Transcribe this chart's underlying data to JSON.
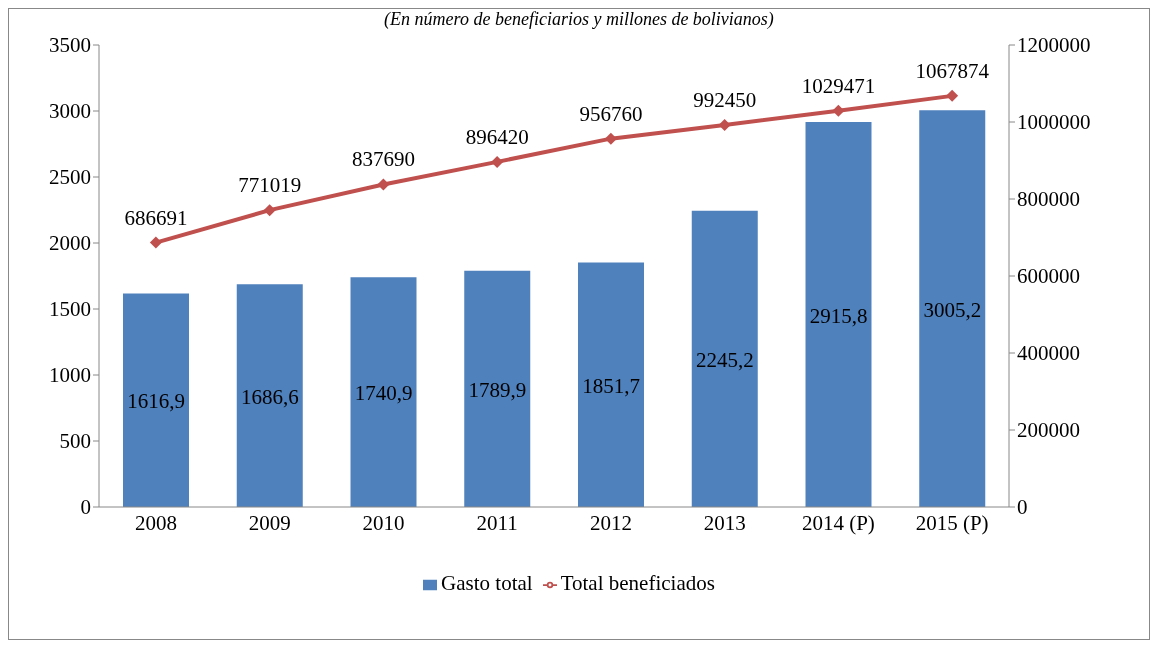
{
  "chart_data": {
    "type": "bar",
    "subtitle": "(En número de beneficiarios y millones de bolivianos)",
    "categories": [
      "2008",
      "2009",
      "2010",
      "2011",
      "2012",
      "2013",
      "2014 (P)",
      "2015 (P)"
    ],
    "series": [
      {
        "name": "Gasto total",
        "color": "#4f81bd",
        "values": [
          1616.9,
          1686.6,
          1740.9,
          1789.9,
          1851.7,
          2245.2,
          2915.8,
          3005.2
        ],
        "value_labels": [
          "1616,9",
          "1686,6",
          "1740,9",
          "1789,9",
          "1851,7",
          "2245,2",
          "2915,8",
          "3005,2"
        ]
      },
      {
        "name": "Total beneficiados",
        "type": "line",
        "axis": "y2",
        "color": "#c0504d",
        "marker": "diamond",
        "values": [
          686691,
          771019,
          837690,
          896420,
          956760,
          992450,
          1029471,
          1067874
        ],
        "value_labels": [
          "686691",
          "771019",
          "837690",
          "896420",
          "956760",
          "992450",
          "1029471",
          "1067874"
        ]
      }
    ],
    "ylim": [
      0,
      3500
    ],
    "yticks": [
      0,
      500,
      1000,
      1500,
      2000,
      2500,
      3000,
      3500
    ],
    "y2lim": [
      0,
      1200000
    ],
    "y2ticks": [
      0,
      200000,
      400000,
      600000,
      800000,
      1000000,
      1200000
    ],
    "grid": false,
    "legend": "bottom"
  }
}
